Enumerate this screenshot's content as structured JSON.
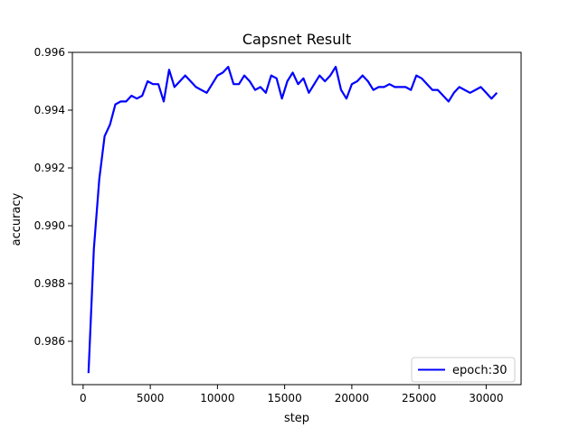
{
  "chart_data": {
    "type": "line",
    "title": "Capsnet Result",
    "xlabel": "step",
    "ylabel": "accuracy",
    "xlim": [
      -800,
      32600
    ],
    "ylim": [
      0.9845,
      0.996
    ],
    "xticks": [
      0,
      5000,
      10000,
      15000,
      20000,
      25000,
      30000
    ],
    "yticks": [
      0.986,
      0.988,
      0.99,
      0.992,
      0.994,
      0.996
    ],
    "ytick_labels": [
      "0.986",
      "0.988",
      "0.990",
      "0.992",
      "0.994",
      "0.996"
    ],
    "grid": false,
    "legend_position": "lower-right",
    "series": [
      {
        "name": "epoch:30",
        "color": "#0000ff",
        "x": [
          400,
          800,
          1200,
          1600,
          2000,
          2400,
          2800,
          3200,
          3600,
          4000,
          4400,
          4800,
          5200,
          5600,
          6000,
          6400,
          6800,
          7200,
          7600,
          8000,
          8400,
          8800,
          9200,
          9600,
          10000,
          10400,
          10800,
          11200,
          11600,
          12000,
          12400,
          12800,
          13200,
          13600,
          14000,
          14400,
          14800,
          15200,
          15600,
          16000,
          16400,
          16800,
          17200,
          17600,
          18000,
          18400,
          18800,
          19200,
          19600,
          20000,
          20400,
          20800,
          21200,
          21600,
          22000,
          22400,
          22800,
          23200,
          23600,
          24000,
          24400,
          24800,
          25200,
          25600,
          26000,
          26400,
          26800,
          27200,
          27600,
          28000,
          28400,
          28800,
          29200,
          29600,
          30000,
          30400,
          30800
        ],
        "values": [
          0.9849,
          0.9892,
          0.9916,
          0.9931,
          0.9935,
          0.9942,
          0.9943,
          0.9943,
          0.9945,
          0.9944,
          0.9945,
          0.995,
          0.9949,
          0.9949,
          0.9943,
          0.9954,
          0.9948,
          0.995,
          0.9952,
          0.995,
          0.9948,
          0.9947,
          0.9946,
          0.9949,
          0.9952,
          0.9953,
          0.9955,
          0.9949,
          0.9949,
          0.9952,
          0.995,
          0.9947,
          0.9948,
          0.9946,
          0.9952,
          0.9951,
          0.9944,
          0.995,
          0.9953,
          0.9949,
          0.9951,
          0.9946,
          0.9949,
          0.9952,
          0.995,
          0.9952,
          0.9955,
          0.9947,
          0.9944,
          0.9949,
          0.995,
          0.9952,
          0.995,
          0.9947,
          0.9948,
          0.9948,
          0.9949,
          0.9948,
          0.9948,
          0.9948,
          0.9947,
          0.9952,
          0.9951,
          0.9949,
          0.9947,
          0.9947,
          0.9945,
          0.9943,
          0.9946,
          0.9948,
          0.9947,
          0.9946,
          0.9947,
          0.9948,
          0.9946,
          0.9944,
          0.9946
        ]
      }
    ]
  }
}
